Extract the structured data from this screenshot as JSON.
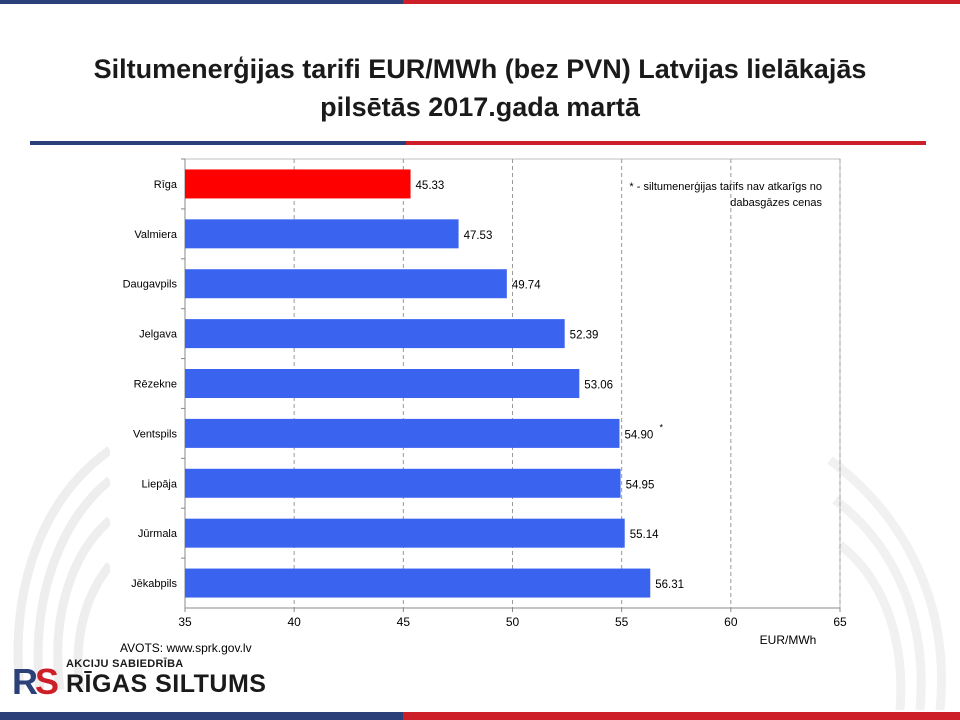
{
  "title": "Siltumenerģijas tarifi EUR/MWh (bez PVN) Latvijas lielākajās pilsētās 2017.gada martā",
  "source": "AVOTS: www.sprk.gov.lv",
  "logo": {
    "subtitle": "AKCIJU SABIEDRĪBA",
    "name": "RĪGAS SILTUMS"
  },
  "colors": {
    "brand_blue": "#2b3f78",
    "brand_red": "#cc1f28",
    "bar_blue": "#3a63f0",
    "bar_red": "#ff0000"
  },
  "chart_data": {
    "type": "bar",
    "orientation": "horizontal",
    "categories": [
      "Rīga",
      "Valmiera",
      "Daugavpils",
      "Jelgava",
      "Rēzekne",
      "Ventspils",
      "Liepāja",
      "Jūrmala",
      "Jēkabpils"
    ],
    "values": [
      45.33,
      47.53,
      49.74,
      52.39,
      53.06,
      54.9,
      54.95,
      55.14,
      56.31
    ],
    "value_labels": [
      "45.33",
      "47.53",
      "49.74",
      "52.39",
      "53.06",
      "54.90",
      "54.95",
      "55.14",
      "56.31"
    ],
    "highlight": [
      "Rīga"
    ],
    "marker_category": "Ventspils",
    "marker": "*",
    "note": "* - siltumenerģijas tarifs nav atkarīgs no dabasgāzes cenas",
    "xlabel": "EUR/MWh",
    "xlim": [
      35,
      65
    ],
    "xticks": [
      35,
      40,
      45,
      50,
      55,
      60,
      65
    ],
    "grid": "vertical-dashed"
  }
}
